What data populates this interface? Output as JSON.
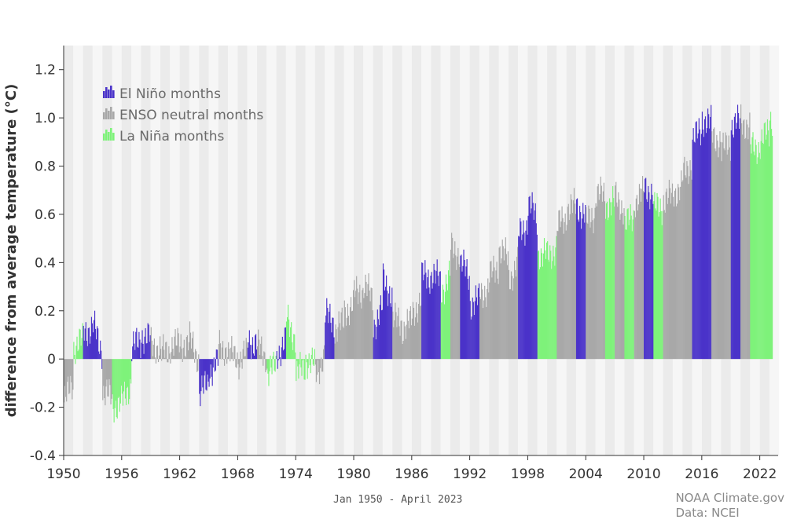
{
  "chart_data": {
    "type": "bar",
    "title": "",
    "ylabel": "difference from average temperature (°C)",
    "xlabel": "Jan 1950 - April 2023",
    "ylim": [
      -0.4,
      1.3
    ],
    "y_ticks": [
      "-0.4",
      "-0.2",
      "0",
      "0.2",
      "0.4",
      "0.6",
      "0.8",
      "1.0",
      "1.2"
    ],
    "x_ticks": [
      "1950",
      "1956",
      "1962",
      "1968",
      "1974",
      "1980",
      "1986",
      "1992",
      "1998",
      "2004",
      "2010",
      "2016",
      "2022"
    ],
    "x_range": [
      "Jan 1950",
      "Apr 2023"
    ],
    "grid": "alternating shaded year bands",
    "legend_position": "top-left",
    "legend": [
      {
        "name": "El Niño months",
        "color": "#4a33c9"
      },
      {
        "name": "ENSO neutral months",
        "color": "#a8a8a8"
      },
      {
        "name": "La Niña months",
        "color": "#7ef27a"
      }
    ],
    "colors": {
      "elnino": "#4a33c9",
      "neutral": "#a8a8a8",
      "lanina": "#7ef27a"
    },
    "annual_means": [
      -0.18,
      0.05,
      0.12,
      0.14,
      -0.14,
      -0.19,
      -0.18,
      0.05,
      0.1,
      0.06,
      0.02,
      0.06,
      0.06,
      0.08,
      -0.14,
      -0.05,
      0.05,
      0.02,
      -0.01,
      0.08,
      0.05,
      -0.06,
      0.02,
      0.17,
      -0.06,
      0.0,
      -0.07,
      0.18,
      0.12,
      0.2,
      0.27,
      0.31,
      0.14,
      0.33,
      0.16,
      0.13,
      0.19,
      0.34,
      0.35,
      0.28,
      0.46,
      0.4,
      0.23,
      0.27,
      0.34,
      0.46,
      0.33,
      0.51,
      0.65,
      0.44,
      0.42,
      0.55,
      0.63,
      0.63,
      0.56,
      0.69,
      0.64,
      0.67,
      0.55,
      0.66,
      0.72,
      0.62,
      0.66,
      0.69,
      0.76,
      0.91,
      1.0,
      0.93,
      0.86,
      0.97,
      1.0,
      0.87,
      0.9,
      1.0
    ],
    "enso_phase_by_year": [
      "N",
      "L",
      "E",
      "E",
      "N",
      "L",
      "L",
      "E",
      "E",
      "N",
      "N",
      "N",
      "N",
      "N",
      "E",
      "E",
      "N",
      "N",
      "N",
      "E",
      "N",
      "L",
      "E",
      "L",
      "L",
      "L",
      "N",
      "E",
      "N",
      "N",
      "N",
      "N",
      "E",
      "E",
      "N",
      "N",
      "N",
      "E",
      "E",
      "L",
      "N",
      "E",
      "E",
      "N",
      "N",
      "N",
      "N",
      "E",
      "E",
      "L",
      "L",
      "N",
      "N",
      "E",
      "N",
      "N",
      "L",
      "N",
      "L",
      "N",
      "E",
      "L",
      "N",
      "N",
      "N",
      "E",
      "E",
      "N",
      "N",
      "E",
      "N",
      "L",
      "L",
      "L"
    ]
  },
  "caption": "Jan 1950 - April 2023",
  "credit": {
    "line1": "NOAA Climate.gov",
    "line2": "Data: NCEI"
  }
}
